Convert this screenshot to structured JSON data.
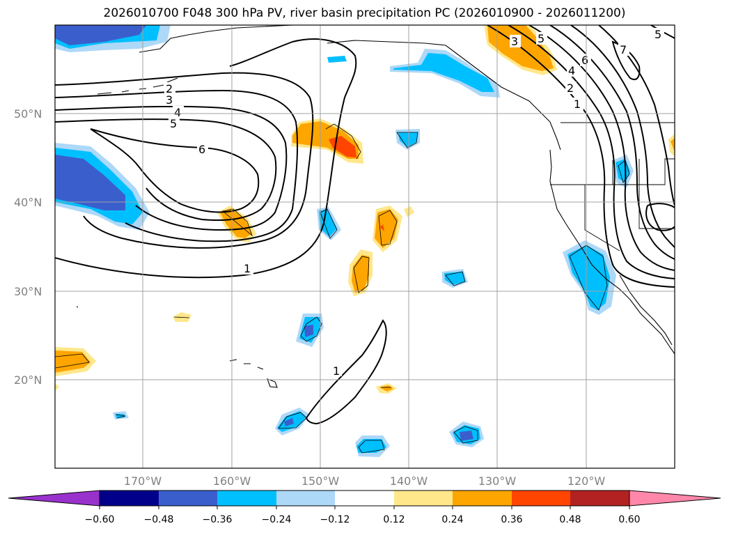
{
  "title": "2026010700 F048 300 hPa PV, river basin precipitation PC (2026010900 - 2026011200)",
  "map": {
    "lat_labels": [
      "50°N",
      "40°N",
      "30°N",
      "20°N"
    ],
    "lon_labels": [
      "170°W",
      "160°W",
      "150°W",
      "140°W",
      "130°W",
      "120°W"
    ],
    "lon_range": [
      -180,
      -110
    ],
    "lat_range": [
      10,
      60
    ]
  },
  "pv_contour_labels": [
    "1",
    "2",
    "3",
    "4",
    "5",
    "6",
    "1",
    "1",
    "2",
    "3",
    "4",
    "5",
    "6",
    "7",
    "5"
  ],
  "colorbar": {
    "ticks": [
      "−0.60",
      "−0.48",
      "−0.36",
      "−0.24",
      "−0.12",
      "0.12",
      "0.24",
      "0.36",
      "0.48",
      "0.60"
    ],
    "colors": [
      "#9932cc",
      "#00008b",
      "#3a5fcd",
      "#00bfff",
      "#add8f8",
      "#ffffff",
      "#ffe78a",
      "#ffa500",
      "#ff4500",
      "#b22222",
      "#ff88aa"
    ]
  }
}
